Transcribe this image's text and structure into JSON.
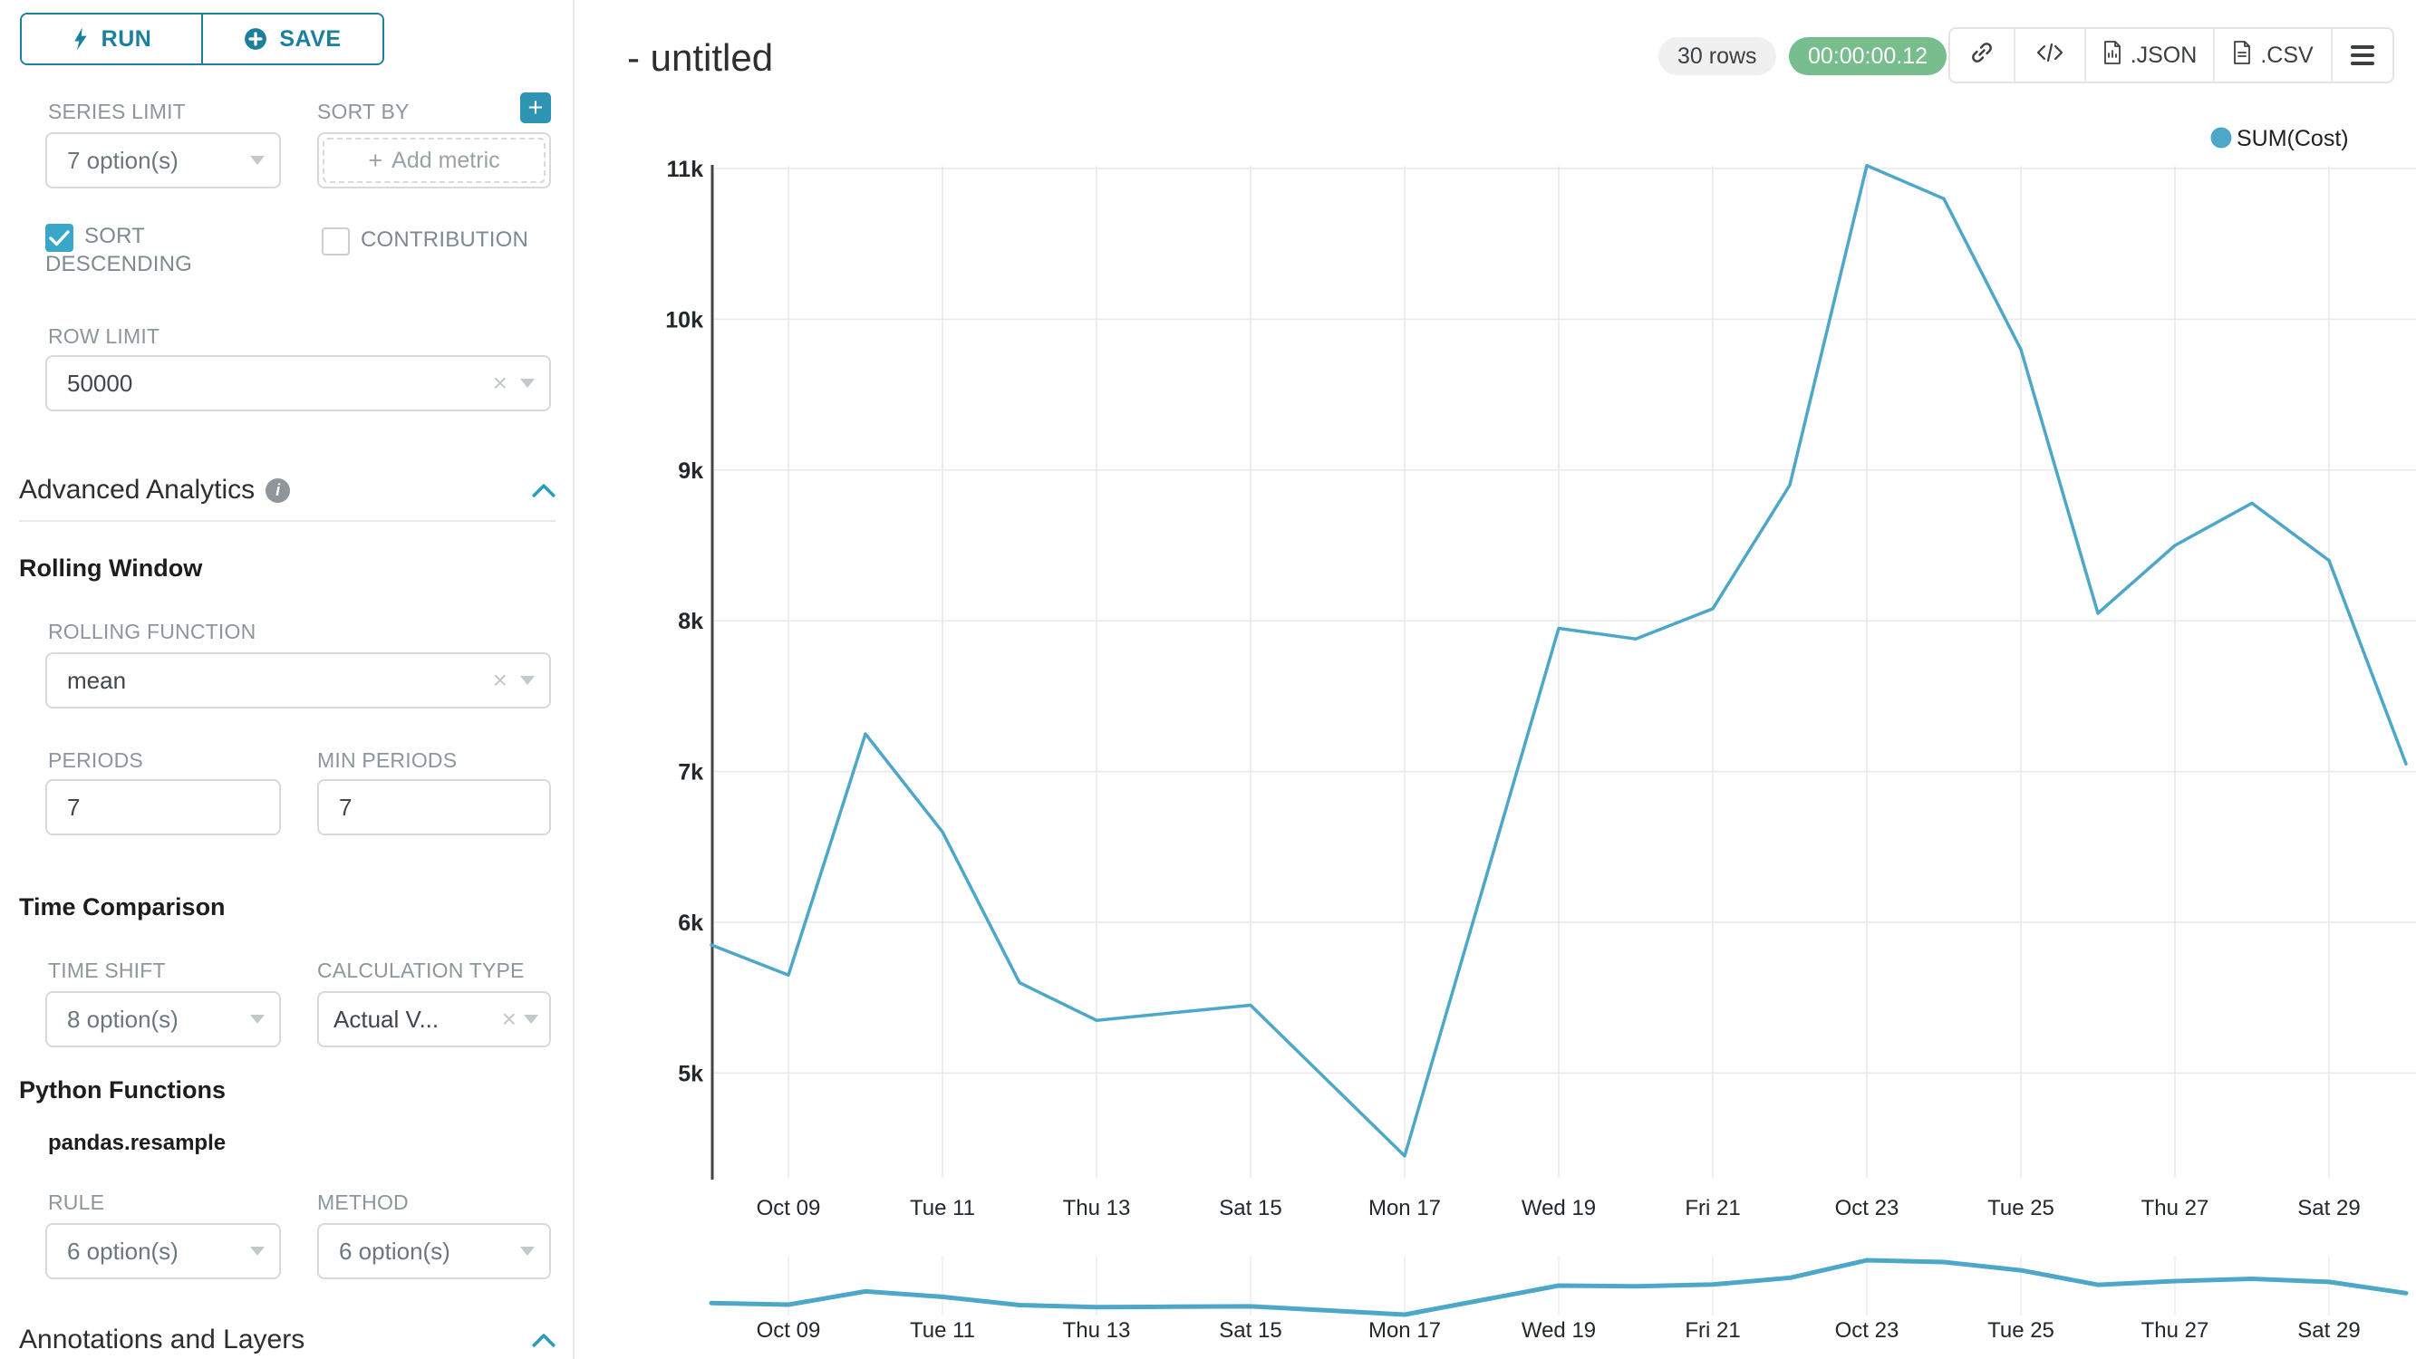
{
  "colors": {
    "accent": "#2b9cbd",
    "accent_dark": "#1c7f9e",
    "line": "#4da7c8",
    "success_badge": "#77bd8d",
    "checkbox": "#38a7ca"
  },
  "sidebar": {
    "run_button": "RUN",
    "save_button": "SAVE",
    "series_limit_label": "SERIES LIMIT",
    "series_limit_value": "7 option(s)",
    "sort_by_label": "SORT BY",
    "add_metric_placeholder": "Add metric",
    "sort_descending_label": "SORT DESCENDING",
    "contribution_label": "CONTRIBUTION",
    "row_limit_label": "ROW LIMIT",
    "row_limit_value": "50000",
    "advanced_analytics_title": "Advanced Analytics",
    "rolling_window_title": "Rolling Window",
    "rolling_function_label": "ROLLING FUNCTION",
    "rolling_function_value": "mean",
    "periods_label": "PERIODS",
    "periods_value": "7",
    "min_periods_label": "MIN PERIODS",
    "min_periods_value": "7",
    "time_comparison_title": "Time Comparison",
    "time_shift_label": "TIME SHIFT",
    "time_shift_value": "8 option(s)",
    "calculation_type_label": "CALCULATION TYPE",
    "calculation_type_value": "Actual V...",
    "python_functions_title": "Python Functions",
    "pandas_resample_title": "pandas.resample",
    "rule_label": "RULE",
    "rule_value": "6 option(s)",
    "method_label": "METHOD",
    "method_value": "6 option(s)",
    "annotations_title": "Annotations and Layers"
  },
  "header": {
    "title": "- untitled",
    "rows_badge": "30 rows",
    "timer_badge": "00:00:00.12",
    "json_button": ".JSON",
    "csv_button": ".CSV"
  },
  "chart_data": {
    "type": "line",
    "title": "- untitled",
    "legend": [
      "SUM(Cost)"
    ],
    "legend_position": "top-right",
    "grid": true,
    "x": [
      "Oct 08",
      "Oct 09",
      "Oct 10",
      "Oct 11",
      "Oct 12",
      "Oct 13",
      "Oct 14",
      "Oct 15",
      "Oct 16",
      "Oct 17",
      "Oct 18",
      "Oct 19",
      "Oct 20",
      "Oct 21",
      "Oct 22",
      "Oct 23",
      "Oct 24",
      "Oct 25",
      "Oct 26",
      "Oct 27",
      "Oct 28",
      "Oct 29",
      "Oct 30"
    ],
    "x_tick_labels": [
      "Oct 09",
      "Tue 11",
      "Thu 13",
      "Sat 15",
      "Mon 17",
      "Wed 19",
      "Fri 21",
      "Oct 23",
      "Tue 25",
      "Thu 27",
      "Sat 29"
    ],
    "y_ticks": [
      11000,
      10000,
      9000,
      8000,
      7000,
      6000,
      5000
    ],
    "y_tick_labels": [
      "11k",
      "10k",
      "9k",
      "8k",
      "7k",
      "6k",
      "5k"
    ],
    "ylim": [
      4380,
      11040
    ],
    "series": [
      {
        "name": "SUM(Cost)",
        "color": "#4da7c8",
        "values": [
          5850,
          5650,
          7250,
          6600,
          5600,
          5350,
          5400,
          5450,
          4950,
          4450,
          6200,
          7950,
          7880,
          8080,
          8900,
          11020,
          10800,
          9800,
          8050,
          8500,
          8780,
          8400,
          7050
        ]
      }
    ],
    "mini_preview": {
      "present": true,
      "x_tick_labels": [
        "Oct 09",
        "Tue 11",
        "Thu 13",
        "Sat 15",
        "Mon 17",
        "Wed 19",
        "Fri 21",
        "Oct 23",
        "Tue 25",
        "Thu 27",
        "Sat 29"
      ]
    }
  }
}
